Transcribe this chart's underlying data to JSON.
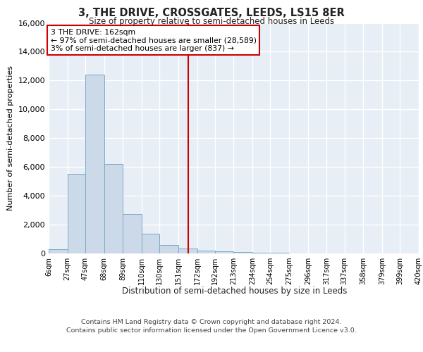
{
  "title": "3, THE DRIVE, CROSSGATES, LEEDS, LS15 8ER",
  "subtitle": "Size of property relative to semi-detached houses in Leeds",
  "xlabel": "Distribution of semi-detached houses by size in Leeds",
  "ylabel": "Number of semi-detached properties",
  "bar_color": "#ccd9e8",
  "bar_edge_color": "#7aaac8",
  "background_color": "#e8eef5",
  "grid_color": "#ffffff",
  "vline_x": 162,
  "vline_color": "#cc0000",
  "annotation_box_color": "#cc0000",
  "annotation_title": "3 THE DRIVE: 162sqm",
  "annotation_line1": "← 97% of semi-detached houses are smaller (28,589)",
  "annotation_line2": "3% of semi-detached houses are larger (837) →",
  "bin_edges": [
    6,
    27,
    47,
    68,
    89,
    110,
    130,
    151,
    172,
    192,
    213,
    234,
    254,
    275,
    296,
    317,
    337,
    358,
    379,
    399,
    420
  ],
  "bin_labels": [
    "6sqm",
    "27sqm",
    "47sqm",
    "68sqm",
    "89sqm",
    "110sqm",
    "130sqm",
    "151sqm",
    "172sqm",
    "192sqm",
    "213sqm",
    "234sqm",
    "254sqm",
    "275sqm",
    "296sqm",
    "317sqm",
    "337sqm",
    "358sqm",
    "379sqm",
    "399sqm",
    "420sqm"
  ],
  "bar_heights": [
    300,
    5500,
    12400,
    6200,
    2750,
    1350,
    600,
    350,
    200,
    130,
    90,
    60,
    40,
    0,
    0,
    0,
    0,
    0,
    0,
    0
  ],
  "ylim": [
    0,
    16000
  ],
  "yticks": [
    0,
    2000,
    4000,
    6000,
    8000,
    10000,
    12000,
    14000,
    16000
  ],
  "footer_line1": "Contains HM Land Registry data © Crown copyright and database right 2024.",
  "footer_line2": "Contains public sector information licensed under the Open Government Licence v3.0."
}
